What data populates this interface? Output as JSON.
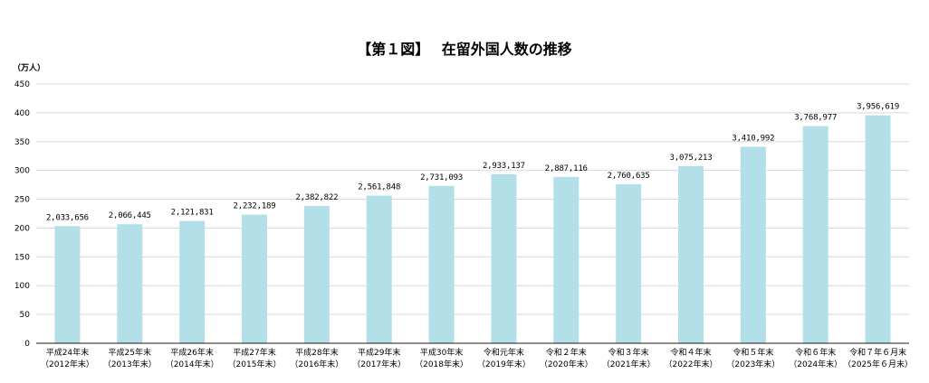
{
  "chart_data": {
    "type": "bar",
    "title": "【第１図】　 在留外国人数の推移",
    "ylabel": "（万人）",
    "xlabel": "",
    "ylim": [
      0,
      450
    ],
    "yticks": [
      0,
      50,
      100,
      150,
      200,
      250,
      300,
      350,
      400,
      450
    ],
    "grid": true,
    "legend": "none",
    "bar_color": "#b3dfe9",
    "categories": [
      [
        "平成24年末",
        "（2012年末）"
      ],
      [
        "平成25年末",
        "（2013年末）"
      ],
      [
        "平成26年末",
        "（2014年末）"
      ],
      [
        "平成27年末",
        "（2015年末）"
      ],
      [
        "平成28年末",
        "（2016年末）"
      ],
      [
        "平成29年末",
        "（2017年末）"
      ],
      [
        "平成30年末",
        "（2018年末）"
      ],
      [
        "令和元年末",
        "（2019年末）"
      ],
      [
        "令和２年末",
        "（2020年末）"
      ],
      [
        "令和３年末",
        "（2021年末）"
      ],
      [
        "令和４年末",
        "（2022年末）"
      ],
      [
        "令和５年末",
        "（2023年末）"
      ],
      [
        "令和６年末",
        "（2024年末）"
      ],
      [
        "令和７年６月末",
        "（2025年６月末）"
      ]
    ],
    "values": [
      203.3656,
      206.6445,
      212.1831,
      223.2189,
      238.2822,
      256.1848,
      273.1093,
      293.3137,
      288.7116,
      276.0635,
      307.5213,
      341.0992,
      376.8977,
      395.6619
    ],
    "data_labels": [
      "2,033,656",
      "2,066,445",
      "2,121,831",
      "2,232,189",
      "2,382,822",
      "2,561,848",
      "2,731,093",
      "2,933,137",
      "2,887,116",
      "2,760,635",
      "3,075,213",
      "3,410,992",
      "3,768,977",
      "3,956,619"
    ]
  }
}
